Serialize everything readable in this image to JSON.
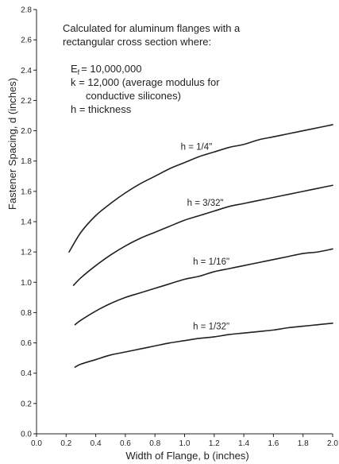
{
  "chart_data": {
    "type": "line",
    "xlabel": "Width of Flange, b (inches)",
    "ylabel": "Fastener Spacing, d (inches)",
    "xlim": [
      0.0,
      2.0
    ],
    "ylim": [
      0.0,
      2.8
    ],
    "xticks": [
      "0.0",
      "0.2",
      "0.4",
      "0.6",
      "0.8",
      "1.0",
      "1.2",
      "1.4",
      "1.6",
      "1.8",
      "2.0"
    ],
    "yticks": [
      "0.0",
      "0.2",
      "0.4",
      "0.6",
      "0.8",
      "1.0",
      "1.2",
      "1.4",
      "1.6",
      "1.8",
      "2.0",
      "2.2",
      "2.4",
      "2.6",
      "2.8"
    ],
    "grid": false,
    "legend": "none",
    "annotation": {
      "lines": [
        "Calculated for aluminum flanges with a",
        "rectangular cross section where:",
        "E",
        "= 10,000,000",
        "k = 12,000 (average modulus for",
        "conductive silicones)",
        "h = thickness"
      ],
      "subscript": "f"
    },
    "series": [
      {
        "name": "h = 1/4\"",
        "x": [
          0.22,
          0.3,
          0.4,
          0.5,
          0.6,
          0.7,
          0.8,
          0.9,
          1.0,
          1.1,
          1.2,
          1.3,
          1.4,
          1.5,
          1.6,
          1.7,
          1.8,
          1.9,
          2.0
        ],
        "y": [
          1.2,
          1.33,
          1.44,
          1.52,
          1.59,
          1.65,
          1.7,
          1.75,
          1.79,
          1.83,
          1.86,
          1.89,
          1.91,
          1.94,
          1.96,
          1.98,
          2.0,
          2.02,
          2.04
        ]
      },
      {
        "name": "h = 3/32\"",
        "x": [
          0.25,
          0.3,
          0.4,
          0.5,
          0.6,
          0.7,
          0.8,
          0.9,
          1.0,
          1.1,
          1.2,
          1.3,
          1.4,
          1.5,
          1.6,
          1.7,
          1.8,
          1.9,
          2.0
        ],
        "y": [
          0.98,
          1.03,
          1.11,
          1.18,
          1.24,
          1.29,
          1.33,
          1.37,
          1.41,
          1.44,
          1.47,
          1.5,
          1.52,
          1.54,
          1.56,
          1.58,
          1.6,
          1.62,
          1.64
        ]
      },
      {
        "name": "h = 1/16\"",
        "x": [
          0.26,
          0.3,
          0.4,
          0.5,
          0.6,
          0.7,
          0.8,
          0.9,
          1.0,
          1.1,
          1.2,
          1.3,
          1.4,
          1.5,
          1.6,
          1.7,
          1.8,
          1.9,
          2.0
        ],
        "y": [
          0.72,
          0.75,
          0.81,
          0.86,
          0.9,
          0.93,
          0.96,
          0.99,
          1.02,
          1.04,
          1.07,
          1.09,
          1.11,
          1.13,
          1.15,
          1.17,
          1.19,
          1.2,
          1.22
        ]
      },
      {
        "name": "h = 1/32\"",
        "x": [
          0.26,
          0.3,
          0.4,
          0.5,
          0.6,
          0.7,
          0.8,
          0.9,
          1.0,
          1.1,
          1.2,
          1.3,
          1.4,
          1.5,
          1.6,
          1.7,
          1.8,
          1.9,
          2.0
        ],
        "y": [
          0.44,
          0.46,
          0.49,
          0.52,
          0.54,
          0.56,
          0.58,
          0.6,
          0.615,
          0.63,
          0.64,
          0.655,
          0.665,
          0.675,
          0.685,
          0.7,
          0.71,
          0.72,
          0.73
        ]
      }
    ]
  },
  "colors": {
    "line": "#231f20",
    "axis": "#231f20",
    "background": "#ffffff"
  }
}
